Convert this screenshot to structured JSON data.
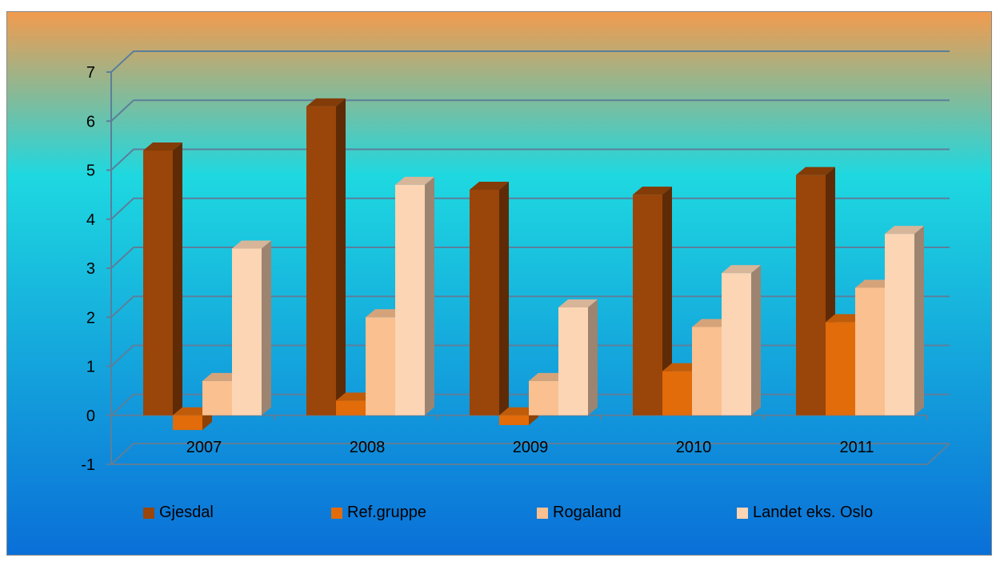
{
  "chart_data": {
    "type": "bar",
    "style": "3d-clustered-column",
    "categories": [
      "2007",
      "2008",
      "2009",
      "2010",
      "2011"
    ],
    "series": [
      {
        "name": "Gjesdal",
        "values": [
          5.4,
          6.3,
          4.6,
          4.5,
          4.9
        ],
        "color": "#9a4509"
      },
      {
        "name": "Ref.gruppe",
        "values": [
          -0.3,
          0.3,
          -0.2,
          0.9,
          1.9
        ],
        "color": "#e26b0a"
      },
      {
        "name": "Rogaland",
        "values": [
          0.7,
          2.0,
          0.7,
          1.8,
          2.6
        ],
        "color": "#fac090"
      },
      {
        "name": "Landet eks. Oslo",
        "values": [
          3.4,
          4.7,
          2.2,
          2.9,
          3.7
        ],
        "color": "#fcd5b4"
      }
    ],
    "yticks": [
      "-1",
      "0",
      "1",
      "2",
      "3",
      "4",
      "5",
      "6",
      "7"
    ],
    "ylim": [
      -1,
      7
    ],
    "grid": true,
    "legend_position": "bottom",
    "background": {
      "top": "#f29b4e",
      "middle": "#1ed8e0",
      "bottom": "#0a6fd8"
    },
    "gridline_color": "#5c7f9a"
  }
}
